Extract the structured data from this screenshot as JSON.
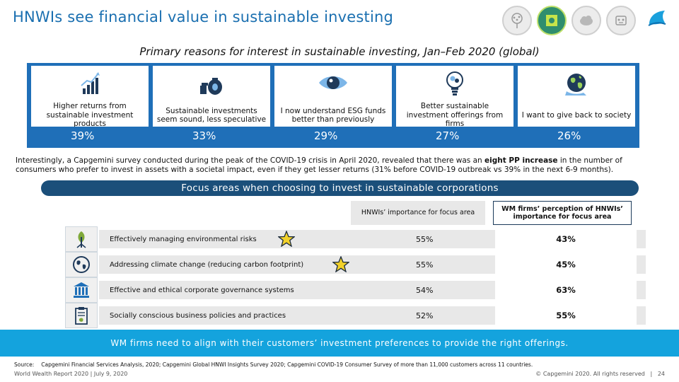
{
  "header": {
    "title": "HNWIs see financial value in sustainable investing",
    "brand": "Capgemini"
  },
  "reasons": {
    "subtitle": "Primary reasons for interest in sustainable investing, Jan–Feb 2020 (global)",
    "items": [
      {
        "icon": "growth-chart-icon",
        "text": "Higher returns from sustainable investment products",
        "value": "39%"
      },
      {
        "icon": "money-bag-icon",
        "text": "Sustainable investments seem sound, less speculative",
        "value": "33%"
      },
      {
        "icon": "eye-icon",
        "text": "I now understand ESG funds better than previously",
        "value": "29%"
      },
      {
        "icon": "lightbulb-icon",
        "text": "Better sustainable investment offerings from firms",
        "value": "27%"
      },
      {
        "icon": "globe-icon",
        "text": "I want to give back to society",
        "value": "26%"
      }
    ]
  },
  "paragraph": {
    "before": "Interestingly, a Capgemini survey conducted during the peak of the COVID-19 crisis in April 2020, revealed that there was an ",
    "bold": "eight PP increase",
    "after": " in the number of consumers who prefer to invest in assets with a societal impact, even if they get lesser returns (31% before COVID-19 outbreak vs 39% in the next 6-9 months)."
  },
  "focus": {
    "title": "Focus areas when choosing to invest in sustainable corporations",
    "col_hnwi": "HNWIs’ importance for focus area",
    "col_firm": "WM firms’ perception of HNWIs’ importance for focus area",
    "rows": [
      {
        "icon": "plant-icon",
        "label": "Effectively managing environmental risks",
        "starred": true,
        "hnwi": "55%",
        "firm": "43%"
      },
      {
        "icon": "globe-icon",
        "label": "Addressing climate change (reducing carbon footprint)",
        "starred": true,
        "hnwi": "55%",
        "firm": "45%"
      },
      {
        "icon": "government-building-icon",
        "label": "Effective and ethical corporate governance systems",
        "starred": false,
        "hnwi": "54%",
        "firm": "63%"
      },
      {
        "icon": "clipboard-icon",
        "label": "Socially conscious business policies and practices",
        "starred": false,
        "hnwi": "52%",
        "firm": "55%"
      }
    ]
  },
  "banner": {
    "text": "WM firms need to align with their customers’ investment preferences to provide the right offerings."
  },
  "footer": {
    "source_label": "Source:",
    "source_text": "Capgemini Financial Services Analysis, 2020; Capgemini Global HNWI Insights Survey 2020; Capgemini COVID-19 Consumer Survey of more than 11,000 customers across 11 countries.",
    "left": "World Wealth Report 2020 | July 9, 2020",
    "copyright": "© Capgemini 2020. All rights reserved",
    "separator": "|",
    "page": "24"
  },
  "colors": {
    "title_blue": "#1a6fb0",
    "frame_blue": "#1f6fb8",
    "dark_navy": "#1b4f7a",
    "banner_cyan": "#14a3dd",
    "row_gray": "#e8e8e8",
    "star_yellow": "#f2d12a"
  }
}
